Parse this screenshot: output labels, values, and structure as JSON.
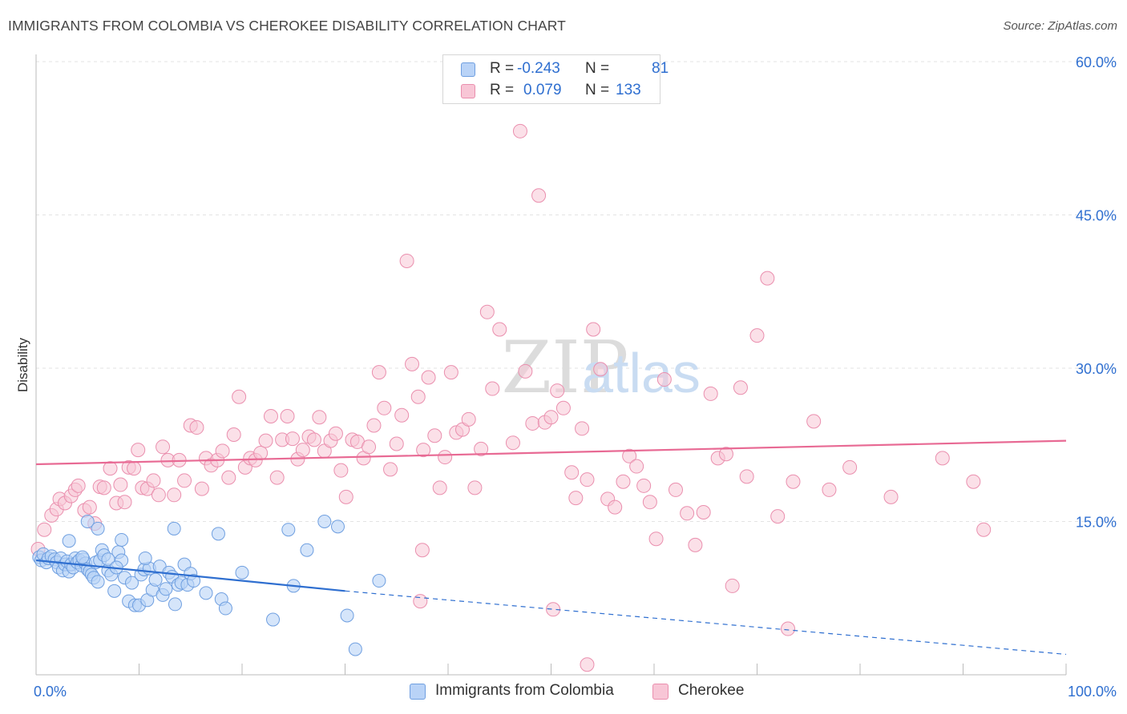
{
  "header": {
    "title": "IMMIGRANTS FROM COLOMBIA VS CHEROKEE DISABILITY CORRELATION CHART",
    "source": "Source: ZipAtlas.com"
  },
  "colors": {
    "blue_fill": "#b9d3f7",
    "blue_stroke": "#6f9fe0",
    "blue_line": "#2f6fd0",
    "pink_fill": "#f8c6d6",
    "pink_stroke": "#ea8fae",
    "pink_line": "#e86a94",
    "value_text": "#2f6fd0",
    "grid": "#e3e3e3"
  },
  "legend_top": {
    "rows": [
      {
        "r_label": "R =",
        "r_value": "-0.243",
        "n_label": "N =",
        "n_value": "81"
      },
      {
        "r_label": "R =",
        "r_value": "0.079",
        "n_label": "N =",
        "n_value": "133"
      }
    ]
  },
  "legend_bottom": [
    "Immigrants from Colombia",
    "Cherokee"
  ],
  "chart_data": {
    "type": "scatter",
    "title": "IMMIGRANTS FROM COLOMBIA VS CHEROKEE DISABILITY CORRELATION CHART",
    "xlabel": "",
    "ylabel": "Disability",
    "xlim": [
      0,
      100
    ],
    "ylim": [
      0,
      63
    ],
    "x_tick_labels": [
      "0.0%",
      "100.0%"
    ],
    "y_ticks": [
      15,
      30,
      45,
      60
    ],
    "y_tick_labels": [
      "15.0%",
      "30.0%",
      "45.0%",
      "60.0%"
    ],
    "grid": true,
    "legend_position": "top-center",
    "watermark": "ZIPatlas",
    "series": [
      {
        "name": "Immigrants from Colombia",
        "trend": {
          "x0": 0,
          "y0": 11.2,
          "x1": 30,
          "y1": 8.2,
          "dashed_to_x": 100,
          "dashed_to_y": 2.0
        },
        "points": [
          [
            0.3,
            11.5
          ],
          [
            0.5,
            11.2
          ],
          [
            0.7,
            11.8
          ],
          [
            1.0,
            11.0
          ],
          [
            1.2,
            11.4
          ],
          [
            1.5,
            11.6
          ],
          [
            1.8,
            11.3
          ],
          [
            2.0,
            11.0
          ],
          [
            2.2,
            10.5
          ],
          [
            2.4,
            11.4
          ],
          [
            2.6,
            10.2
          ],
          [
            2.8,
            10.8
          ],
          [
            3.0,
            11.1
          ],
          [
            3.2,
            10.1
          ],
          [
            3.4,
            10.8
          ],
          [
            3.6,
            10.5
          ],
          [
            3.8,
            11.4
          ],
          [
            4.0,
            11.0
          ],
          [
            4.2,
            11.2
          ],
          [
            4.4,
            10.7
          ],
          [
            4.6,
            11.3
          ],
          [
            4.8,
            10.9
          ],
          [
            5.0,
            10.3
          ],
          [
            5.2,
            10.1
          ],
          [
            5.4,
            9.8
          ],
          [
            5.6,
            9.5
          ],
          [
            5.8,
            11.0
          ],
          [
            6.0,
            9.1
          ],
          [
            6.2,
            11.2
          ],
          [
            6.4,
            12.2
          ],
          [
            6.6,
            11.7
          ],
          [
            7.0,
            10.2
          ],
          [
            7.3,
            9.8
          ],
          [
            7.6,
            8.2
          ],
          [
            8.0,
            12.0
          ],
          [
            8.3,
            11.2
          ],
          [
            8.6,
            9.5
          ],
          [
            9.0,
            7.2
          ],
          [
            9.3,
            9.0
          ],
          [
            9.6,
            6.8
          ],
          [
            10.0,
            6.8
          ],
          [
            10.2,
            9.8
          ],
          [
            10.5,
            10.3
          ],
          [
            10.8,
            7.3
          ],
          [
            11.0,
            10.4
          ],
          [
            11.3,
            8.3
          ],
          [
            11.6,
            9.3
          ],
          [
            12.0,
            10.6
          ],
          [
            12.3,
            7.8
          ],
          [
            12.6,
            8.4
          ],
          [
            12.9,
            10.0
          ],
          [
            13.2,
            9.6
          ],
          [
            13.5,
            6.9
          ],
          [
            13.8,
            8.8
          ],
          [
            14.1,
            9.0
          ],
          [
            14.4,
            10.8
          ],
          [
            14.7,
            8.8
          ],
          [
            15.0,
            9.9
          ],
          [
            15.3,
            9.2
          ],
          [
            3.2,
            13.1
          ],
          [
            4.5,
            11.5
          ],
          [
            5.0,
            15.0
          ],
          [
            6.0,
            14.3
          ],
          [
            7.0,
            11.3
          ],
          [
            7.8,
            10.5
          ],
          [
            8.3,
            13.2
          ],
          [
            10.6,
            11.4
          ],
          [
            13.4,
            14.3
          ],
          [
            16.5,
            8.0
          ],
          [
            17.7,
            13.8
          ],
          [
            18.0,
            7.4
          ],
          [
            18.4,
            6.5
          ],
          [
            20.0,
            10.0
          ],
          [
            23.0,
            5.4
          ],
          [
            24.5,
            14.2
          ],
          [
            25.0,
            8.7
          ],
          [
            26.3,
            12.2
          ],
          [
            28.0,
            15.0
          ],
          [
            29.3,
            14.5
          ],
          [
            30.2,
            5.8
          ],
          [
            31.0,
            2.5
          ],
          [
            33.3,
            9.2
          ]
        ]
      },
      {
        "name": "Cherokee",
        "trend": {
          "x0": 0,
          "y0": 20.6,
          "x1": 100,
          "y1": 22.9
        },
        "points": [
          [
            0.2,
            12.3
          ],
          [
            0.8,
            14.2
          ],
          [
            1.5,
            15.6
          ],
          [
            2.0,
            16.2
          ],
          [
            2.3,
            17.2
          ],
          [
            2.8,
            16.8
          ],
          [
            3.4,
            17.5
          ],
          [
            3.8,
            18.1
          ],
          [
            4.1,
            18.5
          ],
          [
            4.7,
            16.1
          ],
          [
            5.2,
            16.4
          ],
          [
            5.7,
            14.8
          ],
          [
            6.2,
            18.4
          ],
          [
            6.6,
            18.3
          ],
          [
            7.2,
            20.2
          ],
          [
            7.8,
            16.8
          ],
          [
            8.2,
            18.6
          ],
          [
            8.6,
            16.9
          ],
          [
            9.0,
            20.3
          ],
          [
            9.5,
            20.2
          ],
          [
            9.9,
            22.0
          ],
          [
            10.3,
            18.3
          ],
          [
            10.8,
            18.2
          ],
          [
            11.4,
            19.0
          ],
          [
            11.9,
            17.6
          ],
          [
            12.3,
            22.3
          ],
          [
            12.8,
            21.0
          ],
          [
            13.4,
            17.6
          ],
          [
            13.9,
            21.0
          ],
          [
            14.4,
            19.0
          ],
          [
            15.0,
            24.4
          ],
          [
            15.6,
            24.2
          ],
          [
            16.1,
            18.2
          ],
          [
            16.5,
            21.2
          ],
          [
            17.0,
            20.5
          ],
          [
            17.6,
            21.0
          ],
          [
            18.1,
            21.9
          ],
          [
            18.7,
            19.3
          ],
          [
            19.2,
            23.5
          ],
          [
            19.7,
            27.2
          ],
          [
            20.3,
            20.3
          ],
          [
            20.8,
            21.2
          ],
          [
            21.3,
            21.0
          ],
          [
            21.8,
            21.7
          ],
          [
            22.3,
            22.9
          ],
          [
            22.8,
            25.3
          ],
          [
            23.4,
            19.3
          ],
          [
            23.9,
            23.0
          ],
          [
            24.4,
            25.3
          ],
          [
            24.9,
            23.1
          ],
          [
            25.4,
            21.1
          ],
          [
            25.9,
            22.0
          ],
          [
            26.5,
            23.3
          ],
          [
            27.0,
            23.0
          ],
          [
            27.5,
            25.2
          ],
          [
            28.0,
            21.9
          ],
          [
            28.6,
            22.9
          ],
          [
            29.1,
            23.6
          ],
          [
            29.6,
            20.0
          ],
          [
            30.1,
            17.4
          ],
          [
            30.7,
            23.0
          ],
          [
            31.2,
            22.8
          ],
          [
            31.8,
            21.2
          ],
          [
            32.3,
            22.3
          ],
          [
            32.8,
            24.4
          ],
          [
            33.3,
            29.6
          ],
          [
            33.8,
            26.1
          ],
          [
            34.4,
            20.1
          ],
          [
            35.0,
            22.6
          ],
          [
            35.5,
            25.4
          ],
          [
            36.0,
            40.5
          ],
          [
            36.5,
            30.4
          ],
          [
            37.1,
            27.2
          ],
          [
            37.6,
            22.0
          ],
          [
            38.1,
            29.1
          ],
          [
            38.7,
            23.4
          ],
          [
            39.2,
            18.3
          ],
          [
            39.7,
            21.3
          ],
          [
            40.3,
            29.6
          ],
          [
            40.8,
            23.7
          ],
          [
            41.4,
            24.0
          ],
          [
            42.0,
            25.0
          ],
          [
            42.6,
            18.3
          ],
          [
            43.2,
            22.1
          ],
          [
            43.8,
            35.5
          ],
          [
            44.3,
            28.0
          ],
          [
            45.0,
            33.8
          ],
          [
            46.3,
            22.7
          ],
          [
            47.0,
            53.2
          ],
          [
            47.5,
            29.7
          ],
          [
            48.2,
            24.6
          ],
          [
            48.8,
            46.9
          ],
          [
            49.4,
            24.7
          ],
          [
            50.0,
            25.2
          ],
          [
            50.6,
            27.8
          ],
          [
            51.2,
            26.1
          ],
          [
            52.0,
            19.8
          ],
          [
            52.4,
            17.3
          ],
          [
            53.0,
            24.1
          ],
          [
            53.5,
            19.1
          ],
          [
            54.1,
            33.8
          ],
          [
            54.8,
            29.9
          ],
          [
            55.5,
            17.2
          ],
          [
            56.2,
            16.4
          ],
          [
            57.0,
            18.9
          ],
          [
            57.6,
            21.4
          ],
          [
            58.3,
            20.4
          ],
          [
            59.0,
            18.5
          ],
          [
            59.6,
            16.9
          ],
          [
            60.2,
            13.3
          ],
          [
            61.0,
            28.9
          ],
          [
            62.1,
            18.1
          ],
          [
            63.2,
            15.8
          ],
          [
            64.0,
            12.7
          ],
          [
            64.8,
            15.9
          ],
          [
            65.5,
            27.5
          ],
          [
            66.2,
            21.2
          ],
          [
            67.0,
            21.6
          ],
          [
            67.6,
            8.7
          ],
          [
            68.4,
            28.1
          ],
          [
            69.0,
            19.4
          ],
          [
            70.0,
            33.2
          ],
          [
            71.0,
            38.8
          ],
          [
            72.0,
            15.5
          ],
          [
            73.5,
            18.9
          ],
          [
            75.5,
            24.8
          ],
          [
            77.0,
            18.1
          ],
          [
            79.0,
            20.3
          ],
          [
            83.0,
            17.4
          ],
          [
            88.0,
            21.2
          ],
          [
            91.0,
            18.9
          ],
          [
            92.0,
            14.2
          ],
          [
            37.3,
            7.2
          ],
          [
            50.2,
            6.4
          ],
          [
            53.5,
            1.0
          ],
          [
            73.0,
            4.5
          ],
          [
            37.5,
            12.2
          ]
        ]
      }
    ]
  }
}
